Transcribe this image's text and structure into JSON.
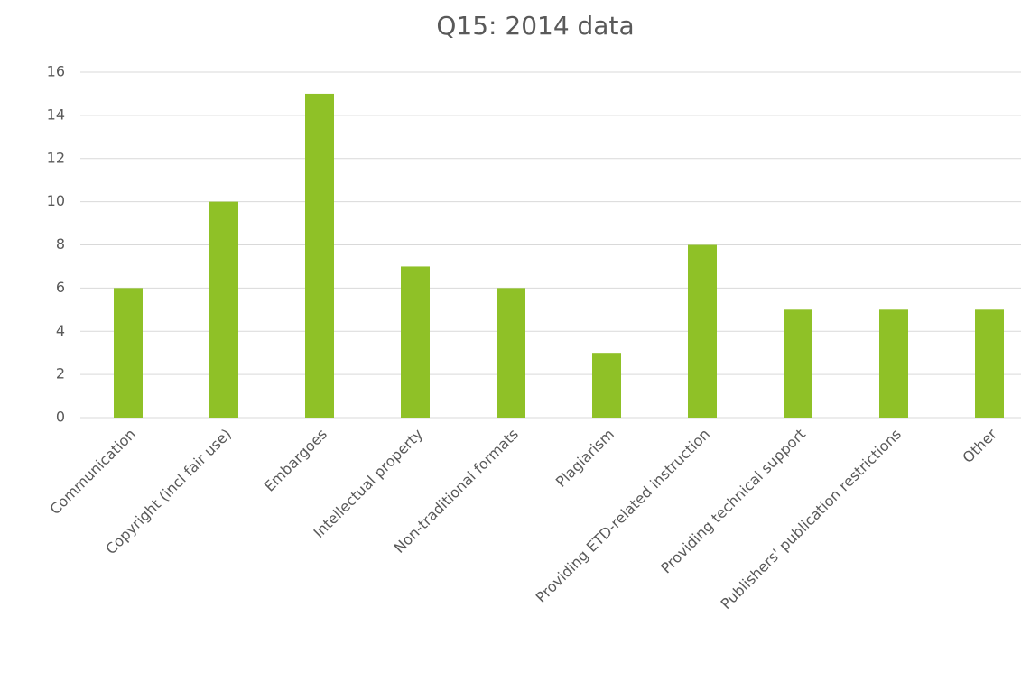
{
  "chart_data": {
    "type": "bar",
    "title": "Q15: 2014 data",
    "categories": [
      "Communication",
      "Copyright (incl fair use)",
      "Embargoes",
      "Intellectual property",
      "Non-traditional formats",
      "Plagiarism",
      "Providing ETD-related instruction",
      "Providing technical support",
      "Publishers' publication restrictions",
      "Other"
    ],
    "values": [
      6,
      10,
      15,
      7,
      6,
      3,
      8,
      5,
      5,
      5
    ],
    "color": "#8fc127",
    "ylim": [
      0,
      16
    ],
    "yticks": [
      0,
      2,
      4,
      6,
      8,
      10,
      12,
      14,
      16
    ],
    "grid": true
  }
}
